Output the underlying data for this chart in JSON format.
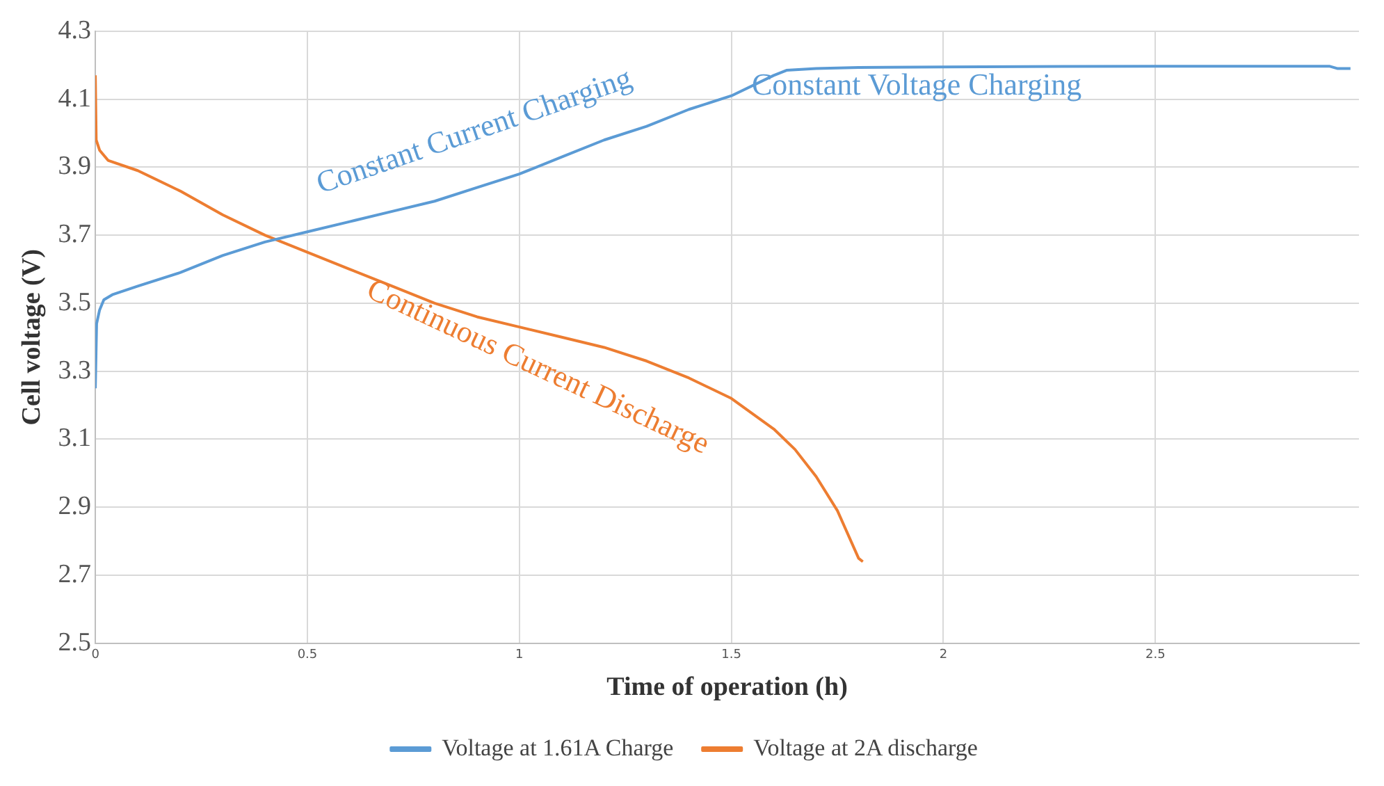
{
  "chart_data": {
    "type": "line",
    "xlabel": "Time of operation (h)",
    "ylabel": "Cell voltage (V)",
    "xlim": [
      0,
      2.98
    ],
    "xticks": [
      0,
      0.5,
      1,
      1.5,
      2,
      2.5
    ],
    "ylim": [
      2.5,
      4.3
    ],
    "yticks": [
      2.5,
      2.7,
      2.9,
      3.1,
      3.3,
      3.5,
      3.7,
      3.9,
      4.1,
      4.3
    ],
    "grid": true,
    "legend": "bottom",
    "marker": "none",
    "line_style": "solid",
    "series": [
      {
        "name": "Voltage at 1.61A Charge",
        "color": "#5b9bd5",
        "x": [
          0,
          0.003,
          0.01,
          0.02,
          0.04,
          0.1,
          0.2,
          0.3,
          0.4,
          0.5,
          0.6,
          0.7,
          0.8,
          0.9,
          1.0,
          1.1,
          1.2,
          1.3,
          1.4,
          1.5,
          1.6,
          1.63,
          1.7,
          1.8,
          2.0,
          2.5,
          2.91,
          2.93,
          2.96
        ],
        "values": [
          3.25,
          3.44,
          3.48,
          3.51,
          3.525,
          3.55,
          3.59,
          3.64,
          3.68,
          3.71,
          3.74,
          3.77,
          3.8,
          3.84,
          3.88,
          3.93,
          3.98,
          4.02,
          4.07,
          4.11,
          4.17,
          4.185,
          4.19,
          4.193,
          4.195,
          4.197,
          4.197,
          4.19,
          4.19
        ]
      },
      {
        "name": "Voltage at 2A discharge",
        "color": "#ed7d31",
        "x": [
          0,
          0.002,
          0.01,
          0.03,
          0.1,
          0.2,
          0.3,
          0.4,
          0.5,
          0.6,
          0.7,
          0.8,
          0.9,
          1.0,
          1.1,
          1.2,
          1.3,
          1.4,
          1.5,
          1.6,
          1.65,
          1.7,
          1.75,
          1.8,
          1.81
        ],
        "values": [
          4.17,
          3.98,
          3.95,
          3.92,
          3.89,
          3.83,
          3.76,
          3.7,
          3.65,
          3.6,
          3.55,
          3.5,
          3.46,
          3.43,
          3.4,
          3.37,
          3.33,
          3.28,
          3.22,
          3.13,
          3.07,
          2.99,
          2.89,
          2.75,
          2.74
        ]
      }
    ],
    "annotations": [
      "Constant Current Charging",
      "Constant Voltage Charging",
      "Continuous Current Discharge"
    ]
  }
}
